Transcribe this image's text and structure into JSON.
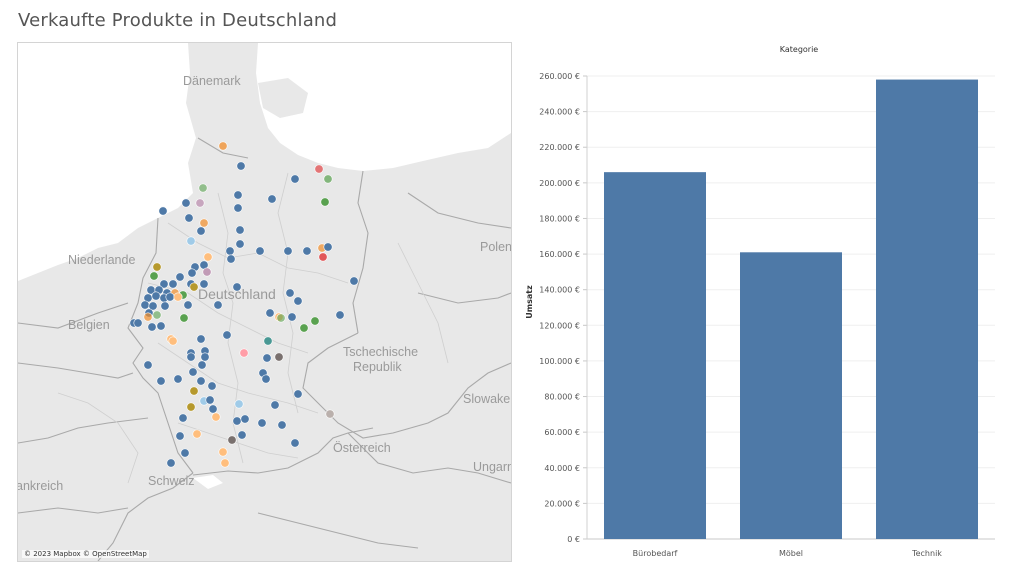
{
  "dashboard": {
    "title": "Verkaufte Produkte in Deutschland"
  },
  "map": {
    "attribution": "© 2023 Mapbox © OpenStreetMap",
    "labels": {
      "danemark": "Dänemark",
      "niederlande": "Niederlande",
      "deutschland": "Deutschland",
      "belgien": "Belgien",
      "tschechische": "Tschechische",
      "republik": "Republik",
      "polen": "Polen",
      "slowakei": "Slowakei",
      "oesterreich": "Österreich",
      "ungarn": "Ungarn",
      "schweiz": "Schweiz",
      "frankreich": "ankreich"
    },
    "colors": {
      "water": "#ffffff",
      "land": "#e8e8e8",
      "border": "#a9a9a9",
      "default_point": "#4e79a7"
    }
  },
  "chart_data": {
    "type": "bar",
    "title": "Kategorie",
    "ylabel": "Umsatz",
    "xlabel": "",
    "categories": [
      "Bürobedarf",
      "Möbel",
      "Technik"
    ],
    "values": [
      206000,
      161000,
      258000
    ],
    "ylim": [
      0,
      260000
    ],
    "yticks": [
      0,
      20000,
      40000,
      60000,
      80000,
      100000,
      120000,
      140000,
      160000,
      180000,
      200000,
      220000,
      240000,
      260000
    ],
    "ytick_labels": [
      "0 €",
      "20.000 €",
      "40.000 €",
      "60.000 €",
      "80.000 €",
      "100.000 €",
      "120.000 €",
      "140.000 €",
      "160.000 €",
      "180.000 €",
      "200.000 €",
      "220.000 €",
      "240.000 €",
      "260.000 €"
    ],
    "bar_color": "#4e79a7",
    "grid": true
  }
}
